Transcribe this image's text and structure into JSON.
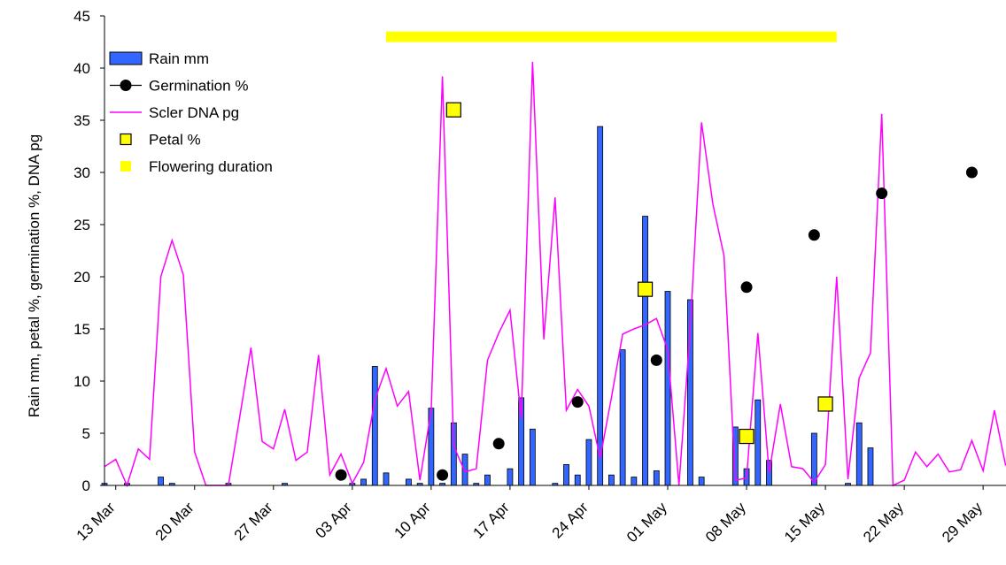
{
  "chart_data": {
    "type": "bar",
    "title": "",
    "xlabel": "",
    "ylabel": "Rain mm, petal %, germination %, DNA pg",
    "ylim": [
      0,
      45
    ],
    "yticks": [
      0,
      5,
      10,
      15,
      20,
      25,
      30,
      35,
      40,
      45
    ],
    "grid": false,
    "legend_position": "top-left",
    "x_unit": "day",
    "x_range": [
      "2006-03-12",
      "2006-06-02"
    ],
    "x_tick_dates": [
      "2006-03-13",
      "2006-03-20",
      "2006-03-27",
      "2006-04-03",
      "2006-04-10",
      "2006-04-17",
      "2006-04-24",
      "2006-05-01",
      "2006-05-08",
      "2006-05-15",
      "2006-05-22",
      "2006-05-29"
    ],
    "x_tick_labels": [
      "13 Mar",
      "20 Mar",
      "27 Mar",
      "03 Apr",
      "10 Apr",
      "17 Apr",
      "24 Apr",
      "01 May",
      "08 May",
      "15 May",
      "22 May",
      "29 May"
    ],
    "series": [
      {
        "name": "Rain mm",
        "kind": "bar",
        "color": "#3366ff",
        "points": [
          [
            "2006-03-12",
            0.2
          ],
          [
            "2006-03-14",
            0.2
          ],
          [
            "2006-03-17",
            0.8
          ],
          [
            "2006-03-18",
            0.2
          ],
          [
            "2006-03-23",
            0.2
          ],
          [
            "2006-03-28",
            0.2
          ],
          [
            "2006-04-03",
            0.2
          ],
          [
            "2006-04-04",
            0.6
          ],
          [
            "2006-04-05",
            11.4
          ],
          [
            "2006-04-06",
            1.2
          ],
          [
            "2006-04-08",
            0.6
          ],
          [
            "2006-04-09",
            0.2
          ],
          [
            "2006-04-10",
            7.4
          ],
          [
            "2006-04-11",
            0.2
          ],
          [
            "2006-04-12",
            6.0
          ],
          [
            "2006-04-13",
            3.0
          ],
          [
            "2006-04-14",
            0.2
          ],
          [
            "2006-04-15",
            1.0
          ],
          [
            "2006-04-17",
            1.6
          ],
          [
            "2006-04-18",
            8.4
          ],
          [
            "2006-04-19",
            5.4
          ],
          [
            "2006-04-21",
            0.2
          ],
          [
            "2006-04-22",
            2.0
          ],
          [
            "2006-04-23",
            1.0
          ],
          [
            "2006-04-24",
            4.4
          ],
          [
            "2006-04-25",
            34.4
          ],
          [
            "2006-04-26",
            1.0
          ],
          [
            "2006-04-27",
            13.0
          ],
          [
            "2006-04-28",
            0.8
          ],
          [
            "2006-04-29",
            25.8
          ],
          [
            "2006-04-30",
            1.4
          ],
          [
            "2006-05-01",
            18.6
          ],
          [
            "2006-05-03",
            17.8
          ],
          [
            "2006-05-04",
            0.8
          ],
          [
            "2006-05-07",
            5.6
          ],
          [
            "2006-05-08",
            1.6
          ],
          [
            "2006-05-09",
            8.2
          ],
          [
            "2006-05-10",
            2.4
          ],
          [
            "2006-05-14",
            5.0
          ],
          [
            "2006-05-17",
            0.2
          ],
          [
            "2006-05-18",
            6.0
          ],
          [
            "2006-05-19",
            3.6
          ],
          [
            "2006-06-02",
            0.4
          ]
        ]
      },
      {
        "name": "Germination %",
        "kind": "marker",
        "color": "#000000",
        "points": [
          [
            "2006-04-02",
            1
          ],
          [
            "2006-04-11",
            1
          ],
          [
            "2006-04-16",
            4
          ],
          [
            "2006-04-23",
            8
          ],
          [
            "2006-04-30",
            12
          ],
          [
            "2006-05-08",
            19
          ],
          [
            "2006-05-14",
            24
          ],
          [
            "2006-05-20",
            28
          ],
          [
            "2006-05-28",
            30
          ]
        ]
      },
      {
        "name": "Scler DNA pg",
        "kind": "line",
        "color": "#ff00ff",
        "points": [
          [
            "2006-03-12",
            1.8
          ],
          [
            "2006-03-13",
            2.5
          ],
          [
            "2006-03-14",
            0
          ],
          [
            "2006-03-15",
            3.5
          ],
          [
            "2006-03-16",
            2.5
          ],
          [
            "2006-03-17",
            20
          ],
          [
            "2006-03-18",
            23.5
          ],
          [
            "2006-03-19",
            20.2
          ],
          [
            "2006-03-20",
            3.2
          ],
          [
            "2006-03-21",
            0
          ],
          [
            "2006-03-22",
            0
          ],
          [
            "2006-03-23",
            0
          ],
          [
            "2006-03-24",
            6.5
          ],
          [
            "2006-03-25",
            13.2
          ],
          [
            "2006-03-26",
            4.2
          ],
          [
            "2006-03-27",
            3.5
          ],
          [
            "2006-03-28",
            7.3
          ],
          [
            "2006-03-29",
            2.4
          ],
          [
            "2006-03-30",
            3.2
          ],
          [
            "2006-03-31",
            12.5
          ],
          [
            "2006-04-01",
            1.0
          ],
          [
            "2006-04-02",
            3.0
          ],
          [
            "2006-04-03",
            0.2
          ],
          [
            "2006-04-04",
            2.2
          ],
          [
            "2006-04-05",
            8.2
          ],
          [
            "2006-04-06",
            11.2
          ],
          [
            "2006-04-07",
            7.6
          ],
          [
            "2006-04-08",
            9.0
          ],
          [
            "2006-04-09",
            0.5
          ],
          [
            "2006-04-10",
            7.2
          ],
          [
            "2006-04-11",
            39.2
          ],
          [
            "2006-04-12",
            3.8
          ],
          [
            "2006-04-13",
            1.3
          ],
          [
            "2006-04-14",
            1.6
          ],
          [
            "2006-04-15",
            12.0
          ],
          [
            "2006-04-16",
            14.6
          ],
          [
            "2006-04-17",
            16.8
          ],
          [
            "2006-04-18",
            6.4
          ],
          [
            "2006-04-19",
            40.6
          ],
          [
            "2006-04-20",
            14.0
          ],
          [
            "2006-04-21",
            27.6
          ],
          [
            "2006-04-22",
            7.2
          ],
          [
            "2006-04-23",
            9.2
          ],
          [
            "2006-04-24",
            7.6
          ],
          [
            "2006-04-25",
            2.6
          ],
          [
            "2006-04-26",
            8.4
          ],
          [
            "2006-04-27",
            14.5
          ],
          [
            "2006-04-28",
            15.0
          ],
          [
            "2006-04-29",
            15.4
          ],
          [
            "2006-04-30",
            16.0
          ],
          [
            "2006-05-01",
            13.0
          ],
          [
            "2006-05-02",
            0
          ],
          [
            "2006-05-03",
            15.0
          ],
          [
            "2006-05-04",
            34.8
          ],
          [
            "2006-05-05",
            27.0
          ],
          [
            "2006-05-06",
            22.0
          ],
          [
            "2006-05-07",
            0.5
          ],
          [
            "2006-05-08",
            0.7
          ],
          [
            "2006-05-09",
            14.6
          ],
          [
            "2006-05-10",
            1.2
          ],
          [
            "2006-05-11",
            7.8
          ],
          [
            "2006-05-12",
            1.8
          ],
          [
            "2006-05-13",
            1.6
          ],
          [
            "2006-05-14",
            0.3
          ],
          [
            "2006-05-15",
            2.0
          ],
          [
            "2006-05-16",
            20.0
          ],
          [
            "2006-05-17",
            0.6
          ],
          [
            "2006-05-18",
            10.3
          ],
          [
            "2006-05-19",
            12.7
          ],
          [
            "2006-05-20",
            35.6
          ],
          [
            "2006-05-21",
            0
          ],
          [
            "2006-05-22",
            0.5
          ],
          [
            "2006-05-23",
            3.2
          ],
          [
            "2006-05-24",
            1.8
          ],
          [
            "2006-05-25",
            3.0
          ],
          [
            "2006-05-26",
            1.3
          ],
          [
            "2006-05-27",
            1.5
          ],
          [
            "2006-05-28",
            4.3
          ],
          [
            "2006-05-29",
            1.4
          ],
          [
            "2006-05-30",
            7.2
          ],
          [
            "2006-05-31",
            1.9
          ]
        ]
      },
      {
        "name": "Petal %",
        "kind": "marker",
        "color": "#ffff00",
        "points": [
          [
            "2006-04-12",
            36.0
          ],
          [
            "2006-04-29",
            18.8
          ],
          [
            "2006-05-08",
            4.7
          ],
          [
            "2006-05-15",
            7.8
          ]
        ]
      },
      {
        "name": "Flowering duration",
        "kind": "span",
        "color": "#ffff00",
        "start": "2006-04-06",
        "end": "2006-05-16",
        "y": 43
      }
    ]
  }
}
